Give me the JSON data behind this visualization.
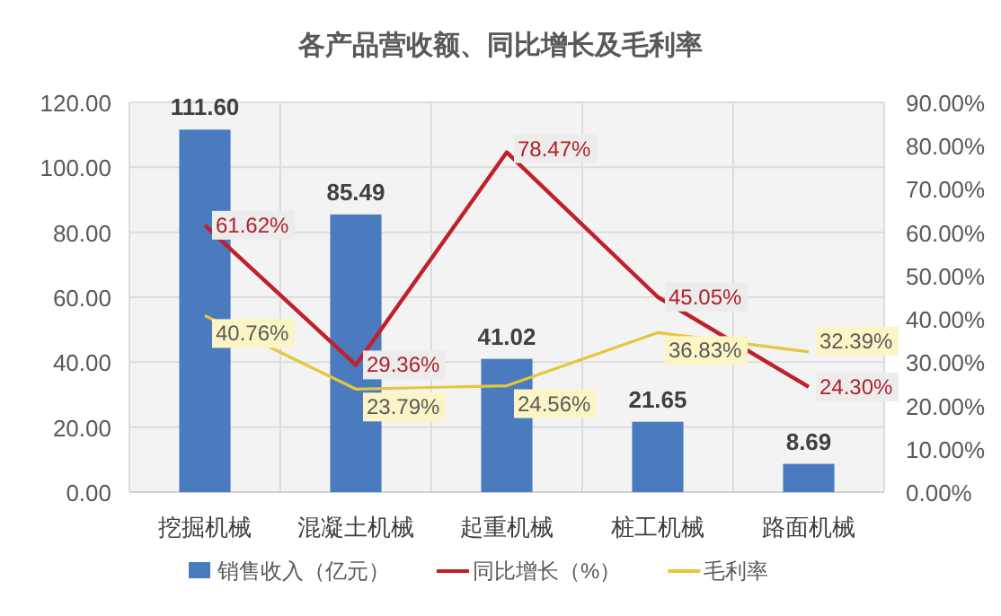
{
  "chart_data": {
    "type": "bar",
    "title": "各产品营收额、同比增长及毛利率",
    "categories": [
      "挖掘机械",
      "混凝土机械",
      "起重机械",
      "桩工机械",
      "路面机械"
    ],
    "series": [
      {
        "name": "销售收入（亿元）",
        "color": "#4a7bbf",
        "values": [
          111.6,
          85.49,
          41.02,
          21.65,
          8.69
        ],
        "value_labels": [
          "111.60",
          "85.49",
          "41.02",
          "21.65",
          "8.69"
        ]
      },
      {
        "name": "同比增长（%）",
        "type": "line",
        "axis": "y2",
        "color": "#c0202a",
        "values": [
          61.62,
          29.36,
          78.47,
          45.05,
          24.3
        ],
        "value_labels": [
          "61.62%",
          "29.36%",
          "78.47%",
          "45.05%",
          "24.30%"
        ]
      },
      {
        "name": "毛利率",
        "type": "line",
        "axis": "y2",
        "color": "#e6c73a",
        "values": [
          40.76,
          23.79,
          24.56,
          36.83,
          32.39
        ],
        "value_labels": [
          "40.76%",
          "23.79%",
          "24.56%",
          "36.83%",
          "32.39%"
        ]
      }
    ],
    "ylim": [
      0,
      120
    ],
    "yticks": [
      {
        "value": 0,
        "label": "0.00"
      },
      {
        "value": 20,
        "label": "20.00"
      },
      {
        "value": 40,
        "label": "40.00"
      },
      {
        "value": 60,
        "label": "60.00"
      },
      {
        "value": 80,
        "label": "80.00"
      },
      {
        "value": 100,
        "label": "100.00"
      },
      {
        "value": 120,
        "label": "120.00"
      }
    ],
    "y2lim": [
      0,
      90
    ],
    "y2ticks": [
      {
        "value": 0,
        "label": "0.00%"
      },
      {
        "value": 10,
        "label": "10.00%"
      },
      {
        "value": 20,
        "label": "20.00%"
      },
      {
        "value": 30,
        "label": "30.00%"
      },
      {
        "value": 40,
        "label": "40.00%"
      },
      {
        "value": 50,
        "label": "50.00%"
      },
      {
        "value": 60,
        "label": "60.00%"
      },
      {
        "value": 70,
        "label": "70.00%"
      },
      {
        "value": 80,
        "label": "80.00%"
      },
      {
        "value": 90,
        "label": "90.00%"
      }
    ],
    "grid": true,
    "legend": "bottom"
  }
}
